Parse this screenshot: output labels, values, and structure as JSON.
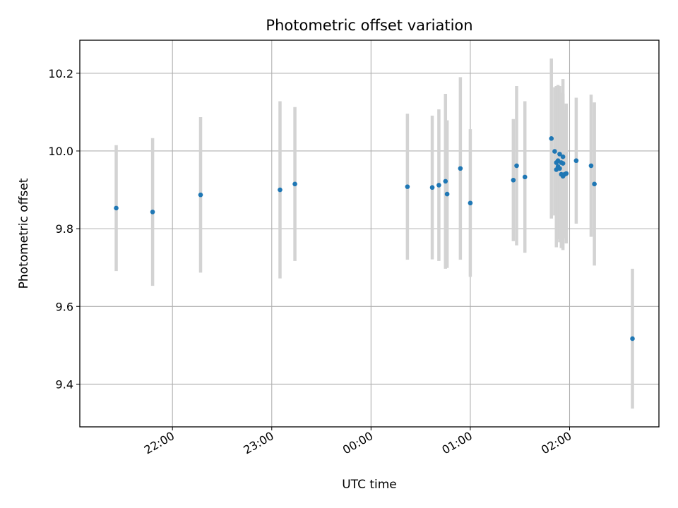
{
  "chart_data": {
    "type": "scatter",
    "title": "Photometric offset variation",
    "xlabel": "UTC time",
    "ylabel": "Photometric offset",
    "x_axis_type": "time",
    "x_ticks": [
      "22:00",
      "23:00",
      "00:00",
      "01:00",
      "02:00"
    ],
    "y_ticks": [
      "9.4",
      "9.6",
      "9.8",
      "10.0",
      "10.2"
    ],
    "xlim": [
      "21:04",
      "02:54"
    ],
    "ylim": [
      9.29,
      10.285
    ],
    "grid": true,
    "marker_color": "#1f77b4",
    "errorbar_color": "#d3d3d3",
    "series": [
      {
        "points": [
          {
            "x": "21:26",
            "y": 9.853,
            "err": 0.162
          },
          {
            "x": "21:48",
            "y": 9.843,
            "err": 0.19
          },
          {
            "x": "22:17",
            "y": 9.887,
            "err": 0.2
          },
          {
            "x": "23:05",
            "y": 9.9,
            "err": 0.228
          },
          {
            "x": "23:14",
            "y": 9.915,
            "err": 0.198
          },
          {
            "x": "00:22",
            "y": 9.908,
            "err": 0.188
          },
          {
            "x": "00:37",
            "y": 9.906,
            "err": 0.185
          },
          {
            "x": "00:41",
            "y": 9.912,
            "err": 0.195
          },
          {
            "x": "00:45",
            "y": 9.922,
            "err": 0.225
          },
          {
            "x": "00:46",
            "y": 9.889,
            "err": 0.19
          },
          {
            "x": "00:54",
            "y": 9.955,
            "err": 0.235
          },
          {
            "x": "01:00",
            "y": 9.866,
            "err": 0.19
          },
          {
            "x": "01:26",
            "y": 9.925,
            "err": 0.157
          },
          {
            "x": "01:28",
            "y": 9.962,
            "err": 0.205
          },
          {
            "x": "01:33",
            "y": 9.933,
            "err": 0.195
          },
          {
            "x": "01:49",
            "y": 10.032,
            "err": 0.206
          },
          {
            "x": "01:51",
            "y": 9.999,
            "err": 0.165
          },
          {
            "x": "01:52",
            "y": 9.97,
            "err": 0.197
          },
          {
            "x": "01:52",
            "y": 9.952,
            "err": 0.2
          },
          {
            "x": "01:53",
            "y": 9.975,
            "err": 0.195
          },
          {
            "x": "01:53",
            "y": 9.96,
            "err": 0.187
          },
          {
            "x": "01:54",
            "y": 9.992,
            "err": 0.175
          },
          {
            "x": "01:54",
            "y": 9.955,
            "err": 0.19
          },
          {
            "x": "01:55",
            "y": 9.94,
            "err": 0.19
          },
          {
            "x": "01:55",
            "y": 9.97,
            "err": 0.18
          },
          {
            "x": "01:56",
            "y": 9.935,
            "err": 0.19
          },
          {
            "x": "01:56",
            "y": 9.985,
            "err": 0.2
          },
          {
            "x": "01:56",
            "y": 9.968,
            "err": 0.18
          },
          {
            "x": "01:57",
            "y": 9.94,
            "err": 0.165
          },
          {
            "x": "01:58",
            "y": 9.942,
            "err": 0.18
          },
          {
            "x": "02:04",
            "y": 9.975,
            "err": 0.162
          },
          {
            "x": "02:13",
            "y": 9.962,
            "err": 0.183
          },
          {
            "x": "02:15",
            "y": 9.915,
            "err": 0.21
          },
          {
            "x": "02:38",
            "y": 9.517,
            "err": 0.18
          }
        ]
      }
    ]
  }
}
